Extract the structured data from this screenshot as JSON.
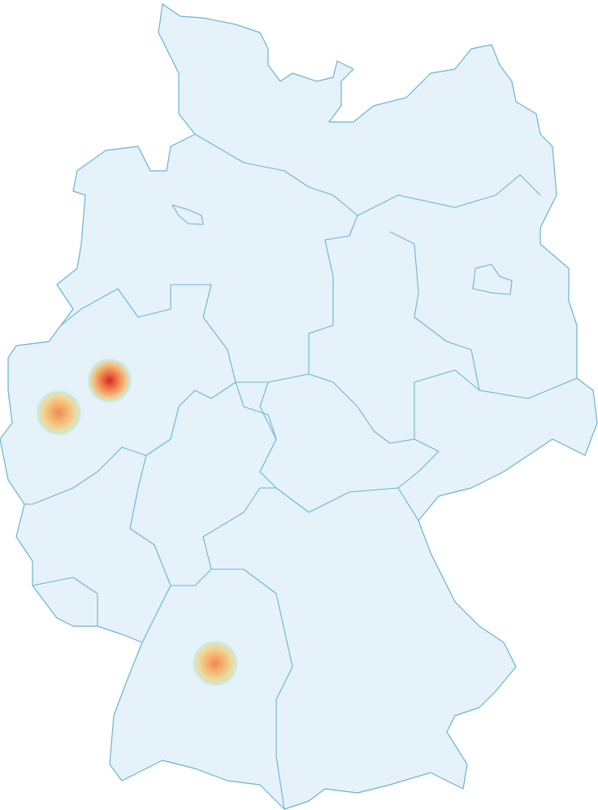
{
  "map": {
    "region": "Germany",
    "colors": {
      "land_fill": "#e5f2f9",
      "border_stroke": "#6ab4d6",
      "heat_low": "#b8e0cf",
      "heat_mid": "#f2b06e",
      "heat_high": "#d9281e"
    },
    "extent": {
      "lon": [
        5.87,
        15.04
      ],
      "lat": [
        47.27,
        55.06
      ]
    },
    "heat_points": [
      {
        "lon": 7.55,
        "lat": 51.4,
        "intensity": 1.0
      },
      {
        "lon": 6.77,
        "lat": 51.09,
        "intensity": 0.6
      },
      {
        "lon": 9.17,
        "lat": 48.68,
        "intensity": 0.65
      }
    ]
  }
}
